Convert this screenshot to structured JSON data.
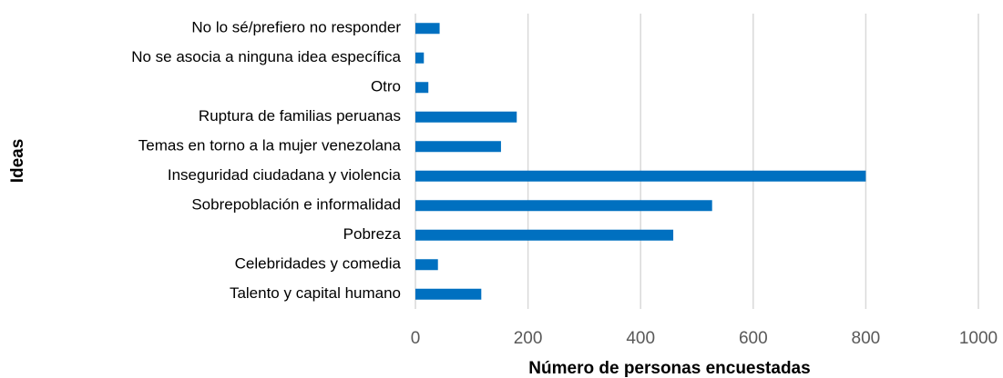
{
  "chart_data": {
    "type": "bar",
    "orientation": "horizontal",
    "xlabel": "Número de personas encuestadas",
    "ylabel": "Ideas",
    "categories": [
      "No lo sé/prefiero no responder",
      "No se asocia a ninguna idea específica",
      "Otro",
      "Ruptura de familias peruanas",
      "Temas en torno a la mujer venezolana",
      "Inseguridad ciudadana y violencia",
      "Sobrepoblación e informalidad",
      "Pobreza",
      "Celebridades y comedia",
      "Talento y capital humano"
    ],
    "values": [
      43,
      15,
      23,
      180,
      152,
      800,
      527,
      458,
      40,
      117
    ],
    "color": "#0070c0",
    "xlim": [
      0,
      1000
    ],
    "xticks": [
      0,
      200,
      400,
      600,
      800,
      1000
    ],
    "grid": true
  }
}
